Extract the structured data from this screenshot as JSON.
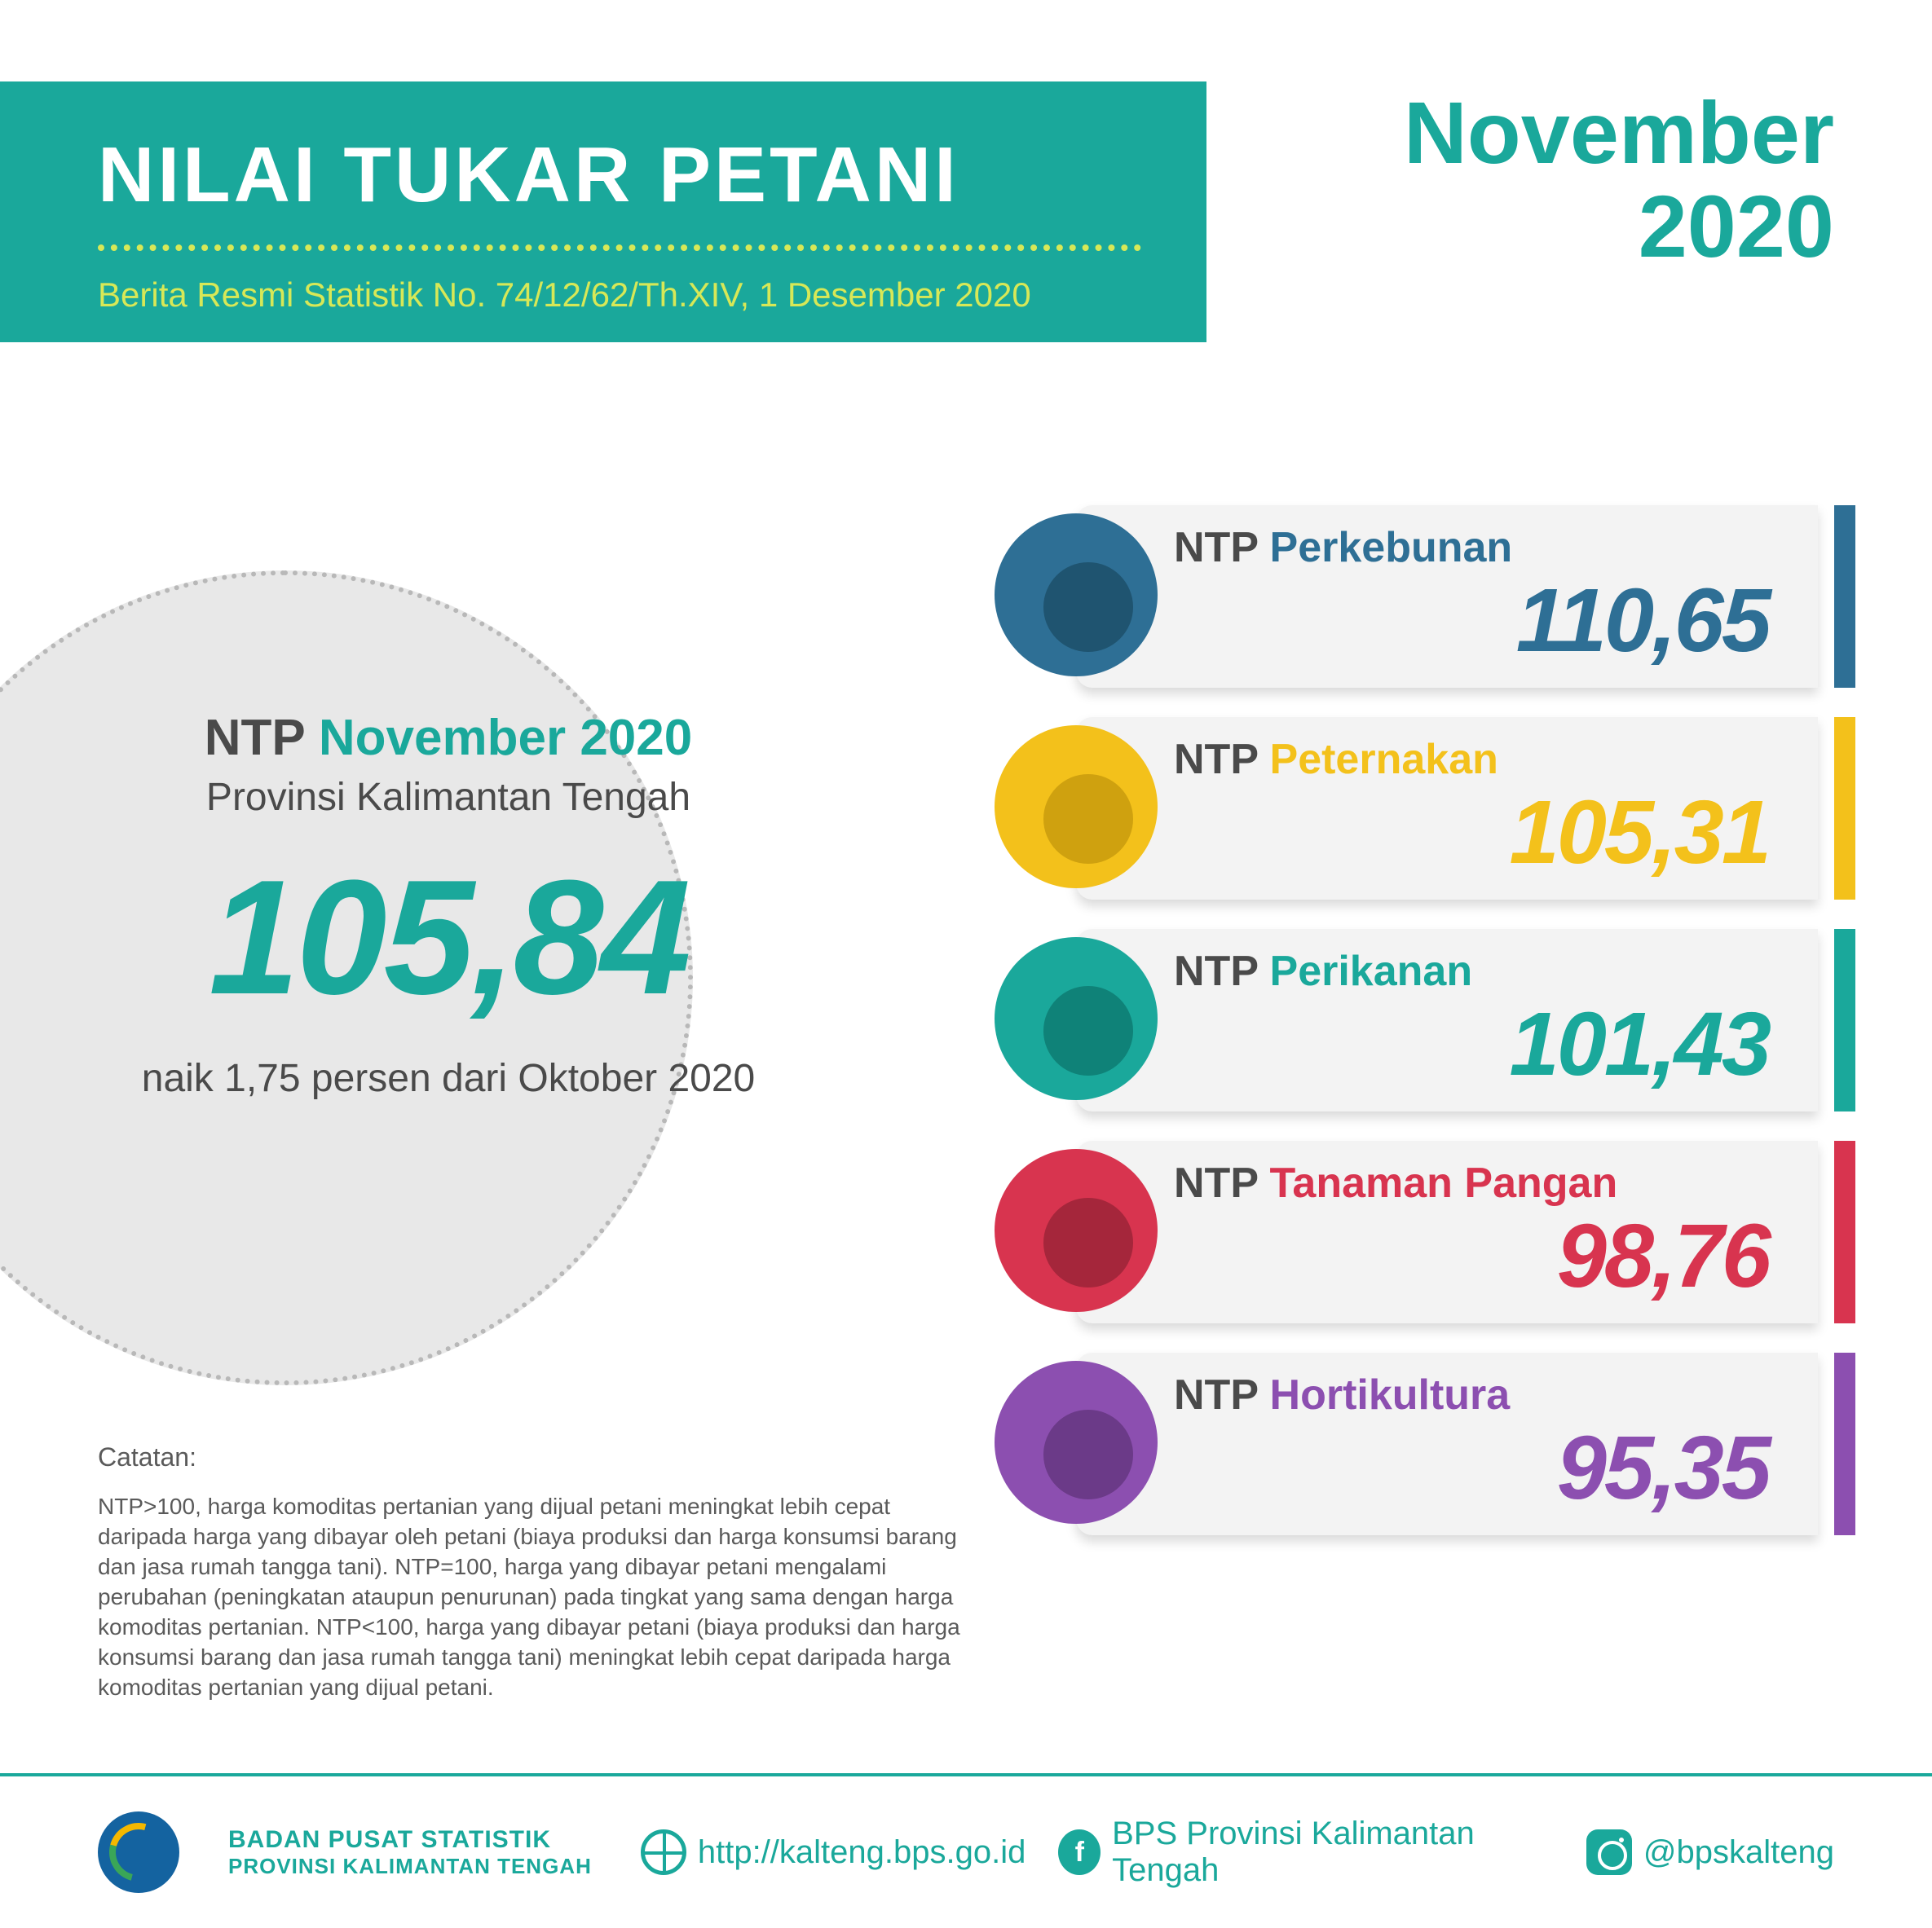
{
  "header": {
    "title": "NILAI TUKAR PETANI",
    "subtitle": "Berita Resmi Statistik No. 74/12/62/Th.XIV, 1 Desember 2020",
    "background_color": "#1aa89b",
    "dotted_color": "#d7e857",
    "subtitle_color": "#d7e857"
  },
  "period": {
    "month": "November",
    "year": "2020",
    "color": "#1aa89b"
  },
  "main": {
    "label_prefix": "NTP",
    "label_suffix": "November 2020",
    "province": "Provinsi Kalimantan Tengah",
    "value": "105,84",
    "change": "naik 1,75 persen dari Oktober 2020",
    "circle_bg": "#e8e8e8",
    "value_color": "#1aa89b"
  },
  "categories": [
    {
      "label_prefix": "NTP",
      "name": "Perkebunan",
      "value": "110,65",
      "color": "#2e6f95",
      "dark": "#1f5470"
    },
    {
      "label_prefix": "NTP",
      "name": "Peternakan",
      "value": "105,31",
      "color": "#f3c11b",
      "dark": "#cfa10f"
    },
    {
      "label_prefix": "NTP",
      "name": "Perikanan",
      "value": "101,43",
      "color": "#1aa89b",
      "dark": "#0f8278"
    },
    {
      "label_prefix": "NTP",
      "name": "Tanaman Pangan",
      "value": "98,76",
      "color": "#d8344f",
      "dark": "#a5263b"
    },
    {
      "label_prefix": "NTP",
      "name": "Hortikultura",
      "value": "95,35",
      "color": "#8c4fb0",
      "dark": "#6b3a88"
    }
  ],
  "notes": {
    "title": "Catatan:",
    "body": "NTP>100, harga komoditas pertanian yang dijual petani meningkat lebih cepat daripada harga yang dibayar oleh petani (biaya produksi dan harga konsumsi barang dan jasa rumah tangga tani). NTP=100, harga yang dibayar petani mengalami perubahan (peningkatan ataupun penurunan) pada tingkat yang sama dengan harga komoditas pertanian. NTP<100, harga yang dibayar petani (biaya produksi dan harga konsumsi barang dan jasa rumah tangga tani) meningkat lebih cepat daripada harga komoditas pertanian yang dijual petani."
  },
  "footer": {
    "org_line1": "BADAN PUSAT STATISTIK",
    "org_line2": "PROVINSI KALIMANTAN TENGAH",
    "website": "http://kalteng.bps.go.id",
    "facebook": "BPS Provinsi Kalimantan Tengah",
    "instagram": "@bpskalteng",
    "accent_color": "#1aa89b"
  }
}
